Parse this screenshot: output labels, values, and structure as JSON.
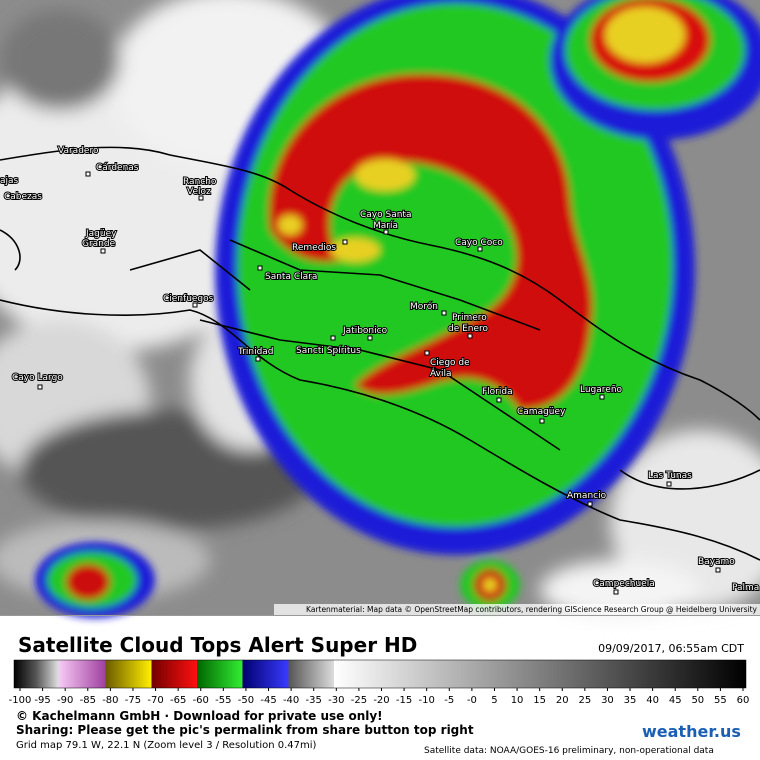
{
  "map": {
    "places": [
      [
        "Varadero"
      ],
      [
        "Cárdenas"
      ],
      [
        "ajas"
      ],
      [
        "Cabezas"
      ],
      [
        "Rancho",
        "Veloz"
      ],
      [
        "Jagüey",
        "Grande"
      ],
      [
        "Remedios"
      ],
      [
        "Cayo Santa",
        "María"
      ],
      [
        "Cayo Coco"
      ],
      [
        "Santa Clara"
      ],
      [
        "Cienfuegos"
      ],
      [
        "Morón"
      ],
      [
        "Primero",
        "de Enero"
      ],
      [
        "Jatibonico"
      ],
      [
        "Sancti Spíritus"
      ],
      [
        "Trinidad"
      ],
      [
        "Ciego de",
        "Ávila"
      ],
      [
        "Florida"
      ],
      [
        "Lugareño"
      ],
      [
        "Camagüey"
      ],
      [
        "Cayo Largo"
      ],
      [
        "Las Tunas"
      ],
      [
        "Amancio"
      ],
      [
        "Bayamo"
      ],
      [
        "Campechuela"
      ],
      [
        "Palma"
      ]
    ],
    "attribution": "Kartenmaterial: Map data © OpenStreetMap contributors, rendering GIScience Research Group @ Heidelberg University"
  },
  "footer": {
    "title": "Satellite Cloud Tops Alert Super HD",
    "timestamp": "09/09/2017, 06:55am CDT",
    "copyright": "© Kachelmann GmbH · Download for private use only!",
    "sharing": "Sharing: Please get the pic's permalink from share button top right",
    "grid": "Grid map 79.1 W, 22.1 N (Zoom level 3 / Resolution 0.47mi)",
    "source": "Satellite data: NOAA/GOES-16 preliminary, non-operational data",
    "logo": "weather.us"
  },
  "colorbar": {
    "range": [
      -100,
      60
    ],
    "ticks": [
      -100,
      -95,
      -90,
      -85,
      -80,
      -75,
      -70,
      -65,
      -60,
      -55,
      -50,
      -45,
      -40,
      -35,
      -30,
      -25,
      -20,
      -15,
      -10,
      -5,
      {
        "value": 0,
        "label": "-0"
      },
      5,
      10,
      15,
      20,
      25,
      30,
      35,
      40,
      45,
      50,
      55,
      60
    ]
  }
}
